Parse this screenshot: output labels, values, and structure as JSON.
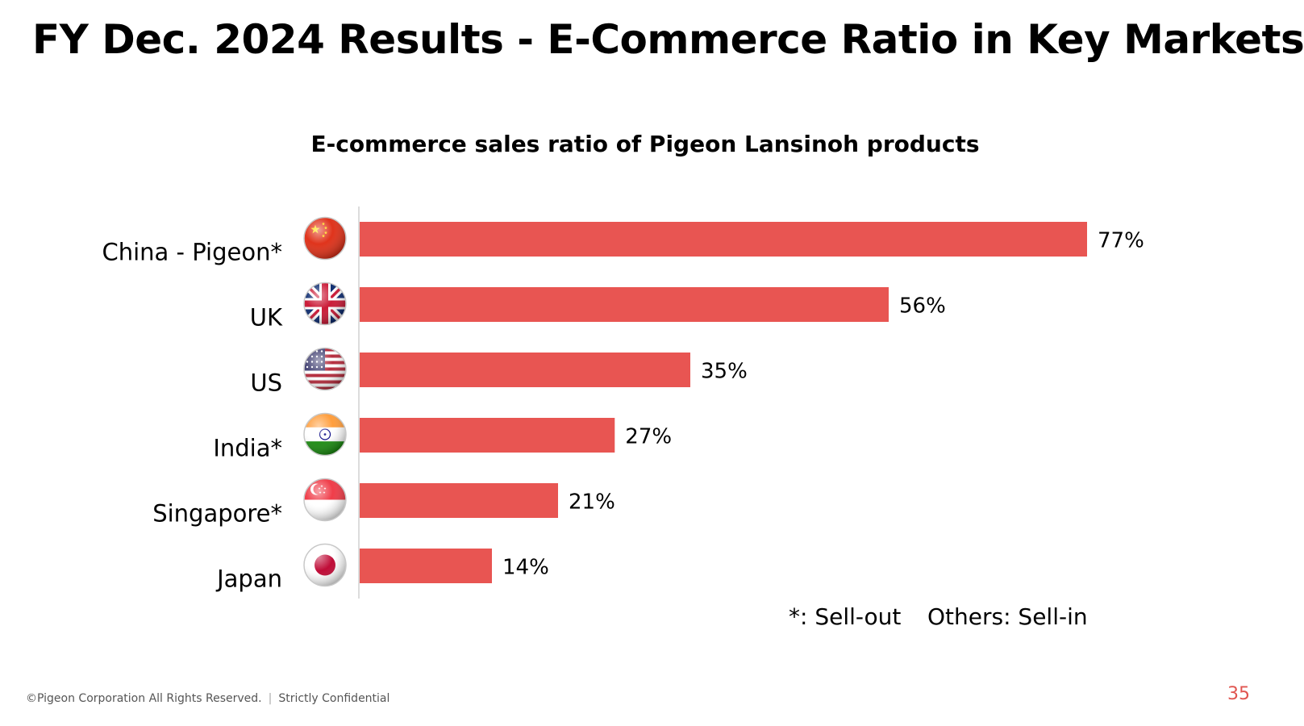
{
  "page": {
    "title": "FY Dec. 2024 Results - E-Commerce Ratio in Key Markets",
    "footer": "©Pigeon Corporation All Rights Reserved.",
    "footer_separator": "|",
    "confidential": "Strictly Confidential",
    "page_number": "35"
  },
  "chart_data": {
    "type": "bar",
    "orientation": "horizontal",
    "title": "E-commerce sales ratio of Pigeon Lansinoh products",
    "categories": [
      "China - Pigeon*",
      "UK",
      "US",
      "India*",
      "Singapore*",
      "Japan"
    ],
    "values": [
      77,
      56,
      35,
      27,
      21,
      14
    ],
    "value_labels": [
      "77%",
      "56%",
      "35%",
      "27%",
      "21%",
      "14%"
    ],
    "flags": [
      "china-flag-icon",
      "uk-flag-icon",
      "us-flag-icon",
      "india-flag-icon",
      "singapore-flag-icon",
      "japan-flag-icon"
    ],
    "xlim": [
      0,
      77
    ],
    "bar_color": "#e85552",
    "grid": false,
    "notes": [
      "*: Sell-out",
      "Others: Sell-in"
    ]
  }
}
